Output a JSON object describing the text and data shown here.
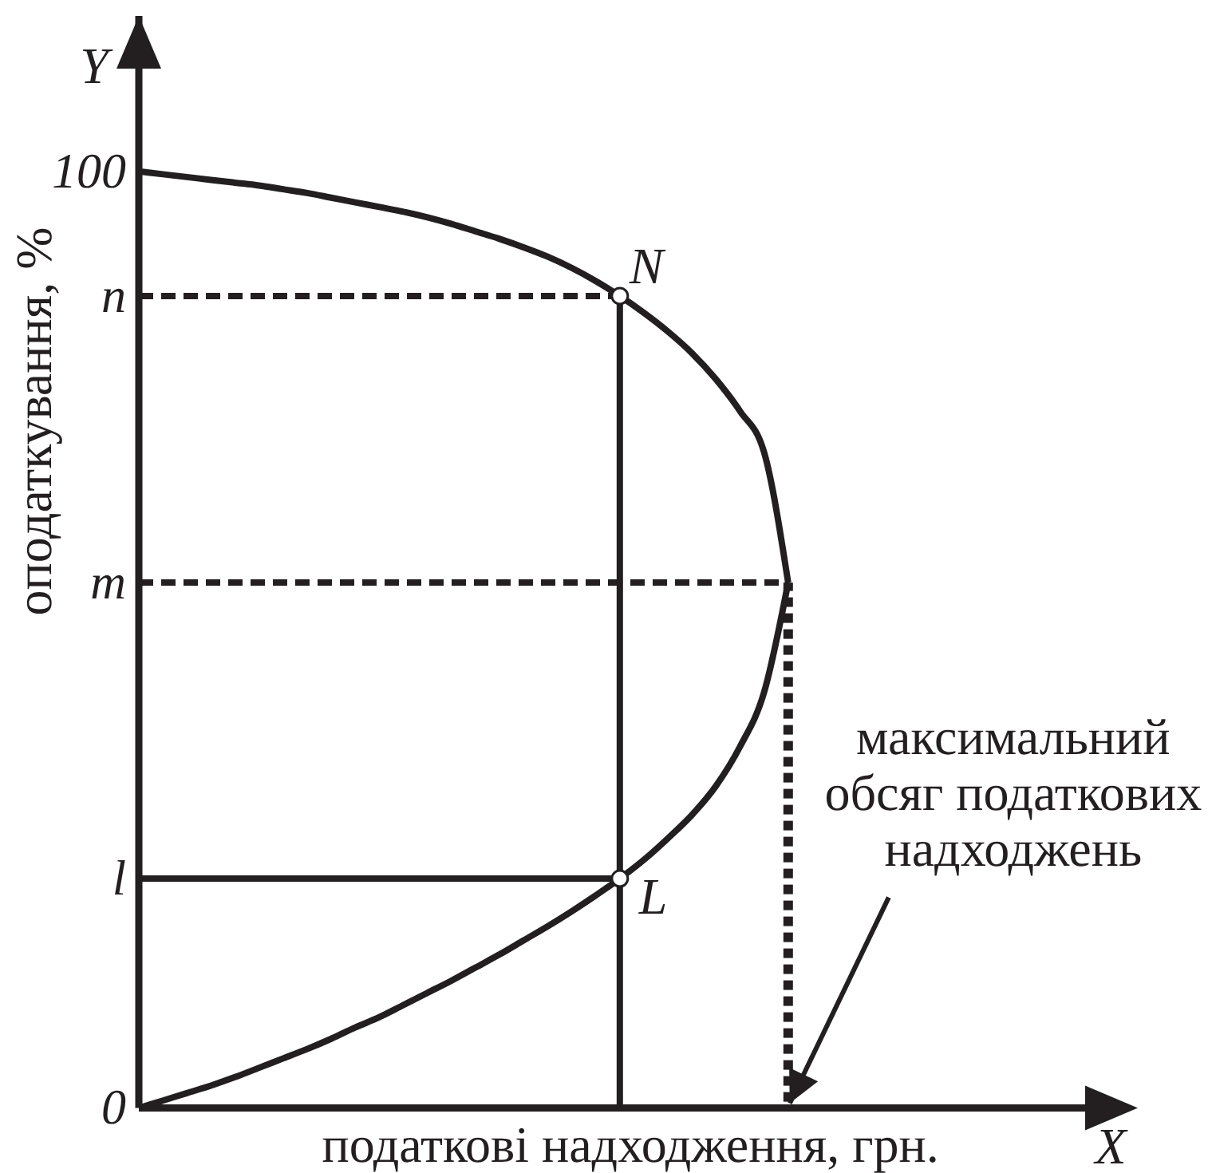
{
  "chart_data": {
    "type": "line",
    "xlabel": "податкові надходження, грн.",
    "ylabel": "оподаткування, %",
    "categories": [
      null,
      null,
      null,
      null,
      null,
      null,
      null,
      null,
      null,
      null,
      null,
      null,
      null,
      null,
      null,
      null,
      null,
      null,
      null,
      null,
      null,
      null,
      null,
      null,
      null,
      null,
      null,
      null
    ],
    "ylim": [
      0,
      116.6
    ],
    "yticks": [
      0,
      {
        "value": 24.5,
        "label": "l"
      },
      {
        "value": 56.1,
        "label": "m"
      },
      {
        "value": 86.7,
        "label": "n"
      },
      100
    ],
    "tick_labels": "y",
    "line_style": "solid",
    "series": [
      {
        "color": "#231f20",
        "values": [
          100,
          99.7,
          99.4,
          99.1,
          98.8,
          98.5,
          98.1,
          97.7,
          97.2,
          96.7,
          96.2,
          95.7,
          95.1,
          94.4,
          93.6,
          92.8,
          91.9,
          90.9,
          89.7,
          88.3,
          86.7,
          84.9,
          82.9,
          80.6,
          77.8,
          74.4,
          70.0,
          56.1
        ]
      },
      {
        "color": "#231f20",
        "values": [
          0,
          0.8,
          1.6,
          2.4,
          3.3,
          4.3,
          5.3,
          6.3,
          7.4,
          8.6,
          9.7,
          11.0,
          12.3,
          13.6,
          15.0,
          16.4,
          17.9,
          19.4,
          21.0,
          22.7,
          24.5,
          26.5,
          28.8,
          31.3,
          34.4,
          38.6,
          44.4,
          56.1
        ]
      },
      {
        "color": "#231f20",
        "line_style": "dashed",
        "values": [
          86.7,
          86.7,
          86.7,
          86.7,
          86.7,
          86.7,
          86.7,
          86.7,
          86.7,
          86.7,
          86.7,
          86.7,
          86.7,
          86.7,
          86.7,
          86.7,
          86.7,
          86.7,
          86.7,
          86.7,
          86.7,
          null,
          null,
          null,
          null,
          null,
          null,
          null
        ]
      },
      {
        "color": "#231f20",
        "line_style": "dashed",
        "values": [
          56.1,
          56.1,
          56.1,
          56.1,
          56.1,
          56.1,
          56.1,
          56.1,
          56.1,
          56.1,
          56.1,
          56.1,
          56.1,
          56.1,
          56.1,
          56.1,
          56.1,
          56.1,
          56.1,
          56.1,
          56.1,
          56.1,
          56.1,
          56.1,
          56.1,
          56.1,
          56.1,
          56.1
        ]
      },
      {
        "color": "#231f20",
        "values": [
          24.5,
          24.5,
          24.5,
          24.5,
          24.5,
          24.5,
          24.5,
          24.5,
          24.5,
          24.5,
          24.5,
          24.5,
          24.5,
          24.5,
          24.5,
          24.5,
          24.5,
          24.5,
          24.5,
          24.5,
          24.5,
          null,
          null,
          null,
          null,
          null,
          null,
          null
        ]
      },
      {
        "type": "lollipop",
        "name": "N",
        "color": "#231f20",
        "marker": "circle",
        "values": [
          null,
          null,
          null,
          null,
          null,
          null,
          null,
          null,
          null,
          null,
          null,
          null,
          null,
          null,
          null,
          null,
          null,
          null,
          null,
          null,
          86.7,
          null,
          null,
          null,
          null,
          null,
          null,
          null
        ]
      },
      {
        "type": "bar",
        "color": "#231f20",
        "line_style": "dotted",
        "values": [
          null,
          null,
          null,
          null,
          null,
          null,
          null,
          null,
          null,
          null,
          null,
          null,
          null,
          null,
          null,
          null,
          null,
          null,
          null,
          null,
          null,
          null,
          null,
          null,
          null,
          null,
          null,
          56.1
        ]
      },
      {
        "type": "scatter",
        "name": "L",
        "color": "#ffffff",
        "marker": "circle",
        "values": [
          null,
          null,
          null,
          null,
          null,
          null,
          null,
          null,
          null,
          null,
          null,
          null,
          null,
          null,
          null,
          null,
          null,
          null,
          null,
          null,
          24.5,
          null,
          null,
          null,
          null,
          null,
          null,
          null
        ]
      }
    ],
    "annotations": [
      "Y",
      "X",
      "максимальний обсяг податкових надходжень"
    ]
  }
}
